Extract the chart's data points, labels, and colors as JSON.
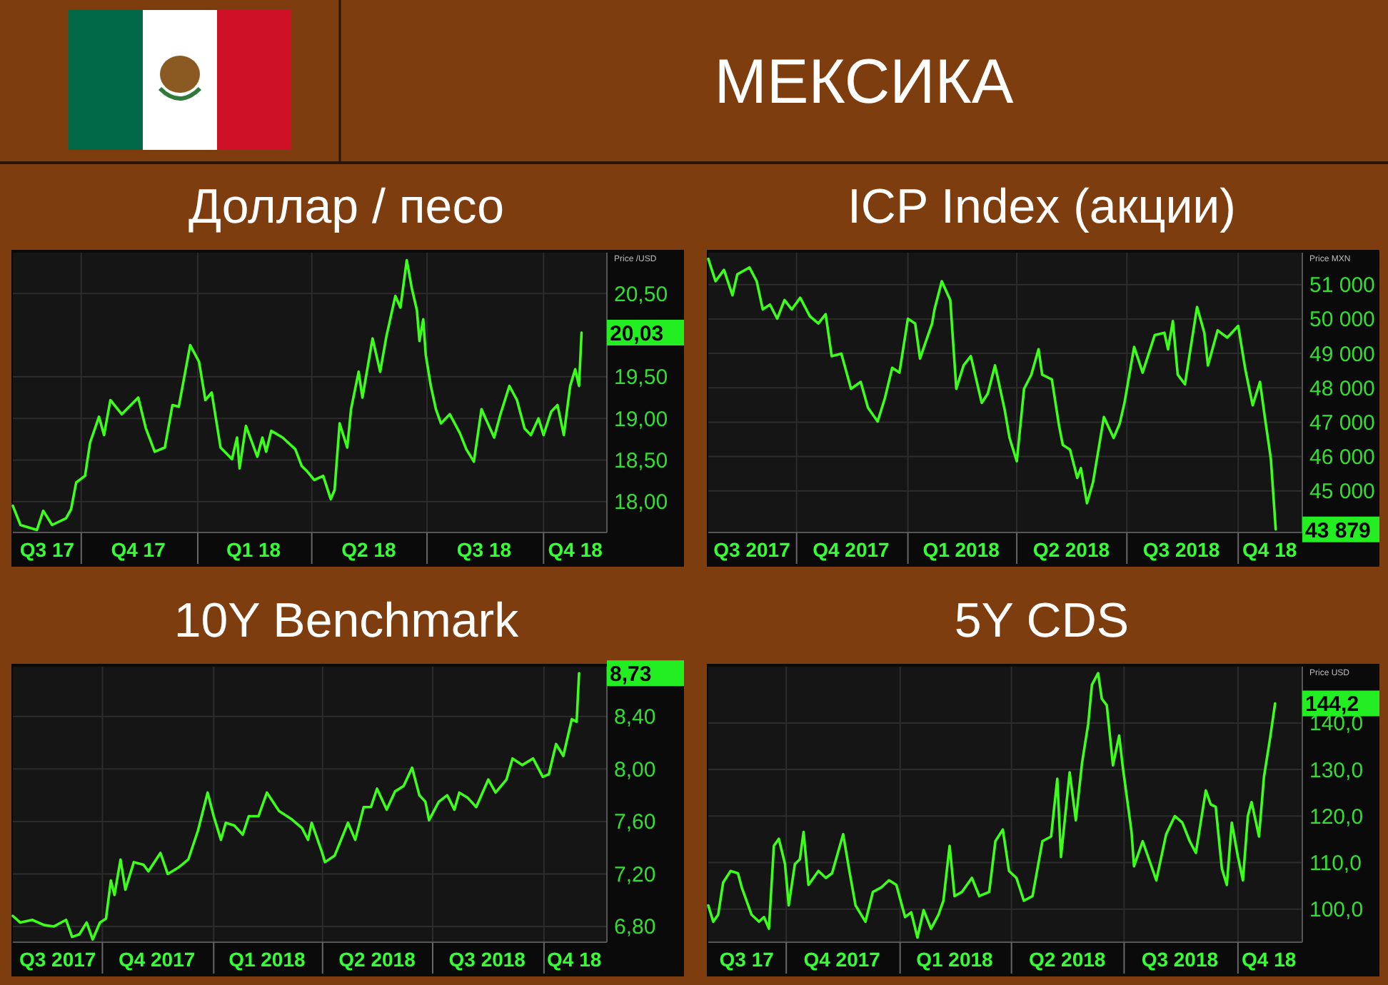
{
  "chart_data": [
    {
      "type": "other",
      "title": "МЕКСИКА"
    },
    {
      "type": "line",
      "title": "Доллар / песо",
      "ylabel": "Price /USD",
      "color": "#3cff1a",
      "grid": true,
      "xlim": [
        "2017-08-08",
        "2018-11-20"
      ],
      "xticks": [
        {
          "value": "2017-09-04",
          "label": "Q3 17"
        },
        {
          "value": "2017-10-01",
          "label": null
        },
        {
          "value": "2017-11-15",
          "label": "Q4 17"
        },
        {
          "value": "2018-01-01",
          "label": null
        },
        {
          "value": "2018-02-14",
          "label": "Q1 18"
        },
        {
          "value": "2018-04-01",
          "label": null
        },
        {
          "value": "2018-05-16",
          "label": "Q2 18"
        },
        {
          "value": "2018-07-01",
          "label": null
        },
        {
          "value": "2018-08-15",
          "label": "Q3 18"
        },
        {
          "value": "2018-10-01",
          "label": null
        },
        {
          "value": "2018-10-26",
          "label": "Q4 18"
        }
      ],
      "ylim": [
        17.63,
        20.99
      ],
      "yticks": [
        {
          "value": 18,
          "label": "18,00"
        },
        {
          "value": 18.5,
          "label": "18,50"
        },
        {
          "value": 19,
          "label": "19,00"
        },
        {
          "value": 19.5,
          "label": "19,50"
        },
        {
          "value": 20.5,
          "label": "20,50"
        }
      ],
      "annotations": [
        {
          "text": "20,03",
          "x": "2018-10-31",
          "y": 20.03
        }
      ],
      "x": [
        "2017-08-08",
        "2017-08-14",
        "2017-08-27",
        "2017-09-01",
        "2017-09-08",
        "2017-09-19",
        "2017-09-23",
        "2017-09-27",
        "2017-10-04",
        "2017-10-08",
        "2017-10-15",
        "2017-10-19",
        "2017-10-24",
        "2017-11-02",
        "2017-11-15",
        "2017-11-21",
        "2017-11-28",
        "2017-12-06",
        "2017-12-12",
        "2017-12-17",
        "2017-12-26",
        "2018-01-02",
        "2018-01-07",
        "2018-01-12",
        "2018-01-19",
        "2018-01-28",
        "2018-02-01",
        "2018-02-03",
        "2018-02-08",
        "2018-02-17",
        "2018-02-21",
        "2018-02-24",
        "2018-02-28",
        "2018-03-09",
        "2018-03-19",
        "2018-03-24",
        "2018-03-28",
        "2018-04-03",
        "2018-04-10",
        "2018-04-16",
        "2018-04-19",
        "2018-04-23",
        "2018-04-29",
        "2018-05-02",
        "2018-05-08",
        "2018-05-11",
        "2018-05-19",
        "2018-05-25",
        "2018-05-30",
        "2018-06-06",
        "2018-06-10",
        "2018-06-15",
        "2018-06-19",
        "2018-06-23",
        "2018-06-25",
        "2018-06-28",
        "2018-06-30",
        "2018-07-04",
        "2018-07-08",
        "2018-07-12",
        "2018-07-19",
        "2018-07-27",
        "2018-08-01",
        "2018-08-07",
        "2018-08-13",
        "2018-08-18",
        "2018-08-23",
        "2018-08-28",
        "2018-09-04",
        "2018-09-10",
        "2018-09-16",
        "2018-09-21",
        "2018-09-27",
        "2018-10-01",
        "2018-10-07",
        "2018-10-12",
        "2018-10-17",
        "2018-10-22",
        "2018-10-26",
        "2018-10-29",
        "2018-10-31"
      ],
      "values": [
        17.95,
        17.72,
        17.66,
        17.89,
        17.72,
        17.8,
        17.91,
        18.23,
        18.31,
        18.71,
        19.02,
        18.8,
        19.22,
        19.05,
        19.25,
        18.88,
        18.6,
        18.65,
        19.16,
        19.14,
        19.88,
        19.68,
        19.22,
        19.31,
        18.65,
        18.51,
        18.77,
        18.4,
        18.91,
        18.54,
        18.77,
        18.6,
        18.85,
        18.77,
        18.63,
        18.43,
        18.37,
        18.26,
        18.31,
        18.03,
        18.14,
        18.94,
        18.65,
        19.11,
        19.56,
        19.25,
        19.96,
        19.56,
        19.99,
        20.47,
        20.33,
        20.9,
        20.56,
        20.3,
        19.93,
        20.19,
        19.76,
        19.39,
        19.11,
        18.94,
        19.05,
        18.82,
        18.63,
        18.48,
        19.11,
        18.94,
        18.77,
        19.05,
        19.39,
        19.22,
        18.88,
        18.8,
        19,
        18.8,
        19.08,
        19.16,
        18.8,
        19.39,
        19.59,
        19.39,
        20.03
      ]
    },
    {
      "type": "line",
      "title": "ICP Index (акции)",
      "ylabel": "Price MXN",
      "color": "#3cff1a",
      "grid": true,
      "xlim": [
        "2017-07-20",
        "2018-11-23"
      ],
      "xticks": [
        {
          "value": "2017-08-25",
          "label": "Q3 2017"
        },
        {
          "value": "2017-10-01",
          "label": null
        },
        {
          "value": "2017-11-15",
          "label": "Q4 2017"
        },
        {
          "value": "2018-01-01",
          "label": null
        },
        {
          "value": "2018-02-14",
          "label": "Q1 2018"
        },
        {
          "value": "2018-04-01",
          "label": null
        },
        {
          "value": "2018-05-16",
          "label": "Q2 2018"
        },
        {
          "value": "2018-07-01",
          "label": null
        },
        {
          "value": "2018-08-15",
          "label": "Q3 2018"
        },
        {
          "value": "2018-10-01",
          "label": null
        },
        {
          "value": "2018-10-27",
          "label": "Q4 18"
        }
      ],
      "ylim": [
        43790,
        51930
      ],
      "yticks": [
        {
          "value": 45000,
          "label": "45 000"
        },
        {
          "value": 46000,
          "label": "46 000"
        },
        {
          "value": 47000,
          "label": "47 000"
        },
        {
          "value": 48000,
          "label": "48 000"
        },
        {
          "value": 49000,
          "label": "49 000"
        },
        {
          "value": 50000,
          "label": "50 000"
        },
        {
          "value": 51000,
          "label": "51 000"
        }
      ],
      "annotations": [
        {
          "text": "43 879",
          "x": "2018-11-01",
          "y": 43879
        }
      ],
      "x": [
        "2017-07-20",
        "2017-07-26",
        "2017-08-02",
        "2017-08-09",
        "2017-08-13",
        "2017-08-23",
        "2017-08-29",
        "2017-09-03",
        "2017-09-09",
        "2017-09-15",
        "2017-09-21",
        "2017-09-27",
        "2017-10-04",
        "2017-10-12",
        "2017-10-19",
        "2017-10-25",
        "2017-10-30",
        "2017-11-07",
        "2017-11-15",
        "2017-11-23",
        "2017-11-29",
        "2017-12-07",
        "2017-12-13",
        "2017-12-19",
        "2017-12-25",
        "2018-01-01",
        "2018-01-07",
        "2018-01-11",
        "2018-01-21",
        "2018-01-23",
        "2018-01-29",
        "2018-02-05",
        "2018-02-10",
        "2018-02-16",
        "2018-02-22",
        "2018-03-03",
        "2018-03-08",
        "2018-03-14",
        "2018-03-22",
        "2018-03-26",
        "2018-04-01",
        "2018-04-07",
        "2018-04-13",
        "2018-04-19",
        "2018-04-22",
        "2018-04-30",
        "2018-05-06",
        "2018-05-09",
        "2018-05-15",
        "2018-05-21",
        "2018-05-24",
        "2018-05-29",
        "2018-06-03",
        "2018-06-12",
        "2018-06-20",
        "2018-06-25",
        "2018-06-29",
        "2018-07-07",
        "2018-07-14",
        "2018-07-24",
        "2018-08-01",
        "2018-08-04",
        "2018-08-08",
        "2018-08-12",
        "2018-08-18",
        "2018-08-28",
        "2018-09-03",
        "2018-09-06",
        "2018-09-14",
        "2018-09-22",
        "2018-10-01",
        "2018-10-07",
        "2018-10-13",
        "2018-10-19",
        "2018-10-23",
        "2018-10-28",
        "2018-11-01"
      ],
      "values": [
        51750,
        51100,
        51430,
        50690,
        51300,
        51500,
        51100,
        50280,
        50420,
        50010,
        50550,
        50280,
        50620,
        50080,
        49870,
        50140,
        48920,
        48990,
        47970,
        48170,
        47420,
        47020,
        47700,
        48580,
        48440,
        50010,
        49870,
        48850,
        49870,
        50280,
        51100,
        50550,
        47970,
        48650,
        48920,
        47560,
        47830,
        48650,
        47360,
        46540,
        45860,
        47970,
        48380,
        49120,
        48380,
        48240,
        46880,
        46340,
        46200,
        45380,
        45660,
        44640,
        45250,
        47150,
        46540,
        46950,
        47560,
        49190,
        48440,
        49530,
        49600,
        49120,
        49940,
        48380,
        48100,
        50350,
        49600,
        48650,
        49670,
        49460,
        49800,
        48510,
        47490,
        48170,
        47150,
        45930,
        43879
      ]
    },
    {
      "type": "line",
      "title": "10Y Benchmark",
      "color": "#3cff1a",
      "grid": true,
      "xlim": [
        "2017-07-19",
        "2018-11-22"
      ],
      "xticks": [
        {
          "value": "2017-08-25",
          "label": "Q3 2017"
        },
        {
          "value": "2017-10-01",
          "label": null
        },
        {
          "value": "2017-11-15",
          "label": "Q4 2017"
        },
        {
          "value": "2018-01-01",
          "label": null
        },
        {
          "value": "2018-02-14",
          "label": "Q1 2018"
        },
        {
          "value": "2018-04-01",
          "label": null
        },
        {
          "value": "2018-05-16",
          "label": "Q2 2018"
        },
        {
          "value": "2018-07-01",
          "label": null
        },
        {
          "value": "2018-08-15",
          "label": "Q3 2018"
        },
        {
          "value": "2018-10-01",
          "label": null
        },
        {
          "value": "2018-10-26",
          "label": "Q4 18"
        }
      ],
      "ylim": [
        6.68,
        8.78
      ],
      "yticks": [
        {
          "value": 6.8,
          "label": "6,80"
        },
        {
          "value": 7.2,
          "label": "7,20"
        },
        {
          "value": 7.6,
          "label": "7,60"
        },
        {
          "value": 8,
          "label": "8,00"
        },
        {
          "value": 8.4,
          "label": "8,40"
        }
      ],
      "annotations": [
        {
          "text": "8,73",
          "x": "2018-10-30",
          "y": 8.73
        }
      ],
      "x": [
        "2017-07-19",
        "2017-07-25",
        "2017-08-04",
        "2017-08-14",
        "2017-08-22",
        "2017-09-01",
        "2017-09-06",
        "2017-09-12",
        "2017-09-18",
        "2017-09-23",
        "2017-09-29",
        "2017-10-04",
        "2017-10-08",
        "2017-10-11",
        "2017-10-16",
        "2017-10-20",
        "2017-10-27",
        "2017-11-04",
        "2017-11-08",
        "2017-11-18",
        "2017-11-24",
        "2017-12-03",
        "2017-12-11",
        "2017-12-19",
        "2017-12-27",
        "2018-01-01",
        "2018-01-07",
        "2018-01-11",
        "2018-01-18",
        "2018-01-25",
        "2018-01-30",
        "2018-02-07",
        "2018-02-14",
        "2018-02-24",
        "2018-03-06",
        "2018-03-15",
        "2018-03-20",
        "2018-03-23",
        "2018-03-31",
        "2018-04-03",
        "2018-04-11",
        "2018-04-22",
        "2018-04-28",
        "2018-05-05",
        "2018-05-11",
        "2018-05-16",
        "2018-05-24",
        "2018-05-31",
        "2018-06-07",
        "2018-06-14",
        "2018-06-20",
        "2018-06-25",
        "2018-06-28",
        "2018-07-06",
        "2018-07-13",
        "2018-07-19",
        "2018-07-23",
        "2018-07-30",
        "2018-08-06",
        "2018-08-16",
        "2018-08-22",
        "2018-08-31",
        "2018-09-05",
        "2018-09-13",
        "2018-09-22",
        "2018-09-30",
        "2018-10-05",
        "2018-10-11",
        "2018-10-17",
        "2018-10-24",
        "2018-10-28",
        "2018-10-30"
      ],
      "values": [
        6.88,
        6.83,
        6.85,
        6.81,
        6.8,
        6.85,
        6.72,
        6.74,
        6.83,
        6.7,
        6.83,
        6.86,
        7.15,
        7.04,
        7.31,
        7.08,
        7.29,
        7.27,
        7.22,
        7.36,
        7.2,
        7.25,
        7.31,
        7.53,
        7.82,
        7.64,
        7.46,
        7.59,
        7.57,
        7.5,
        7.64,
        7.64,
        7.82,
        7.68,
        7.62,
        7.55,
        7.46,
        7.59,
        7.38,
        7.29,
        7.34,
        7.59,
        7.46,
        7.71,
        7.71,
        7.85,
        7.69,
        7.83,
        7.87,
        8.01,
        7.8,
        7.75,
        7.61,
        7.75,
        7.8,
        7.69,
        7.82,
        7.78,
        7.71,
        7.92,
        7.82,
        7.92,
        8.08,
        8.03,
        8.08,
        7.94,
        7.96,
        8.19,
        8.1,
        8.38,
        8.36,
        8.73
      ]
    },
    {
      "type": "line",
      "title": "5Y CDS",
      "ylabel": "Price USD",
      "color": "#3cff1a",
      "grid": true,
      "xlim": [
        "2017-07-30",
        "2018-11-22"
      ],
      "xticks": [
        {
          "value": "2017-08-30",
          "label": "Q3 17"
        },
        {
          "value": "2017-10-01",
          "label": null
        },
        {
          "value": "2017-11-15",
          "label": "Q4 2017"
        },
        {
          "value": "2018-01-01",
          "label": null
        },
        {
          "value": "2018-02-14",
          "label": "Q1 2018"
        },
        {
          "value": "2018-04-01",
          "label": null
        },
        {
          "value": "2018-05-16",
          "label": "Q2 2018"
        },
        {
          "value": "2018-07-01",
          "label": null
        },
        {
          "value": "2018-08-15",
          "label": "Q3 2018"
        },
        {
          "value": "2018-10-01",
          "label": null
        },
        {
          "value": "2018-10-26",
          "label": "Q4 18"
        }
      ],
      "ylim": [
        92.9,
        152.1
      ],
      "yticks": [
        {
          "value": 100,
          "label": "100,0"
        },
        {
          "value": 110,
          "label": "110,0"
        },
        {
          "value": 120,
          "label": "120,0"
        },
        {
          "value": 130,
          "label": "130,0"
        },
        {
          "value": 140,
          "label": "140,0"
        }
      ],
      "annotations": [
        {
          "text": "144,2",
          "x": "2018-10-31",
          "y": 144.2
        }
      ],
      "x": [
        "2017-07-30",
        "2017-08-03",
        "2017-08-07",
        "2017-08-11",
        "2017-08-17",
        "2017-08-23",
        "2017-08-26",
        "2017-09-03",
        "2017-09-09",
        "2017-09-13",
        "2017-09-17",
        "2017-09-21",
        "2017-09-25",
        "2017-09-30",
        "2017-10-03",
        "2017-10-08",
        "2017-10-12",
        "2017-10-15",
        "2017-10-19",
        "2017-10-27",
        "2017-11-02",
        "2017-11-07",
        "2017-11-16",
        "2017-11-21",
        "2017-11-26",
        "2017-12-04",
        "2017-12-10",
        "2017-12-17",
        "2017-12-23",
        "2017-12-29",
        "2018-01-05",
        "2018-01-10",
        "2018-01-15",
        "2018-01-20",
        "2018-01-26",
        "2018-02-01",
        "2018-02-05",
        "2018-02-10",
        "2018-02-14",
        "2018-02-20",
        "2018-02-28",
        "2018-03-06",
        "2018-03-14",
        "2018-03-19",
        "2018-03-25",
        "2018-03-30",
        "2018-04-05",
        "2018-04-11",
        "2018-04-18",
        "2018-04-26",
        "2018-05-03",
        "2018-05-08",
        "2018-05-11",
        "2018-05-18",
        "2018-05-23",
        "2018-05-28",
        "2018-06-02",
        "2018-06-05",
        "2018-06-10",
        "2018-06-13",
        "2018-06-17",
        "2018-06-22",
        "2018-06-27",
        "2018-06-30",
        "2018-07-07",
        "2018-07-09",
        "2018-07-16",
        "2018-07-27",
        "2018-08-04",
        "2018-08-11",
        "2018-08-17",
        "2018-08-23",
        "2018-08-28",
        "2018-09-05",
        "2018-09-09",
        "2018-09-13",
        "2018-09-18",
        "2018-09-22",
        "2018-09-26",
        "2018-10-01",
        "2018-10-05",
        "2018-10-09",
        "2018-10-12",
        "2018-10-18",
        "2018-10-22",
        "2018-10-27",
        "2018-10-31"
      ],
      "values": [
        100.8,
        97.3,
        98.8,
        105.7,
        108.2,
        107.7,
        104.7,
        98.8,
        97.3,
        98.3,
        95.8,
        113.6,
        115.1,
        109.7,
        100.8,
        109.7,
        110.7,
        116.6,
        105.2,
        108.2,
        106.7,
        107.7,
        116.1,
        108.2,
        100.8,
        97.3,
        103.7,
        104.7,
        106.2,
        105.2,
        98.3,
        99.3,
        93.9,
        99.8,
        95.8,
        98.8,
        101.8,
        113.6,
        102.8,
        103.7,
        106.7,
        102.8,
        103.7,
        114.6,
        117.1,
        108.2,
        106.7,
        101.8,
        102.8,
        114.6,
        115.6,
        128,
        111.2,
        129.4,
        119.1,
        131.4,
        139.8,
        148.2,
        150.7,
        145.2,
        143.8,
        130.9,
        137.3,
        130.4,
        116.6,
        109.2,
        114.6,
        106.2,
        116.1,
        120,
        118.6,
        114.6,
        112.1,
        125.5,
        122.5,
        122,
        108.7,
        105.2,
        118.6,
        111.2,
        106.2,
        120,
        123,
        115.6,
        128.4,
        136.8,
        144.2
      ]
    }
  ]
}
